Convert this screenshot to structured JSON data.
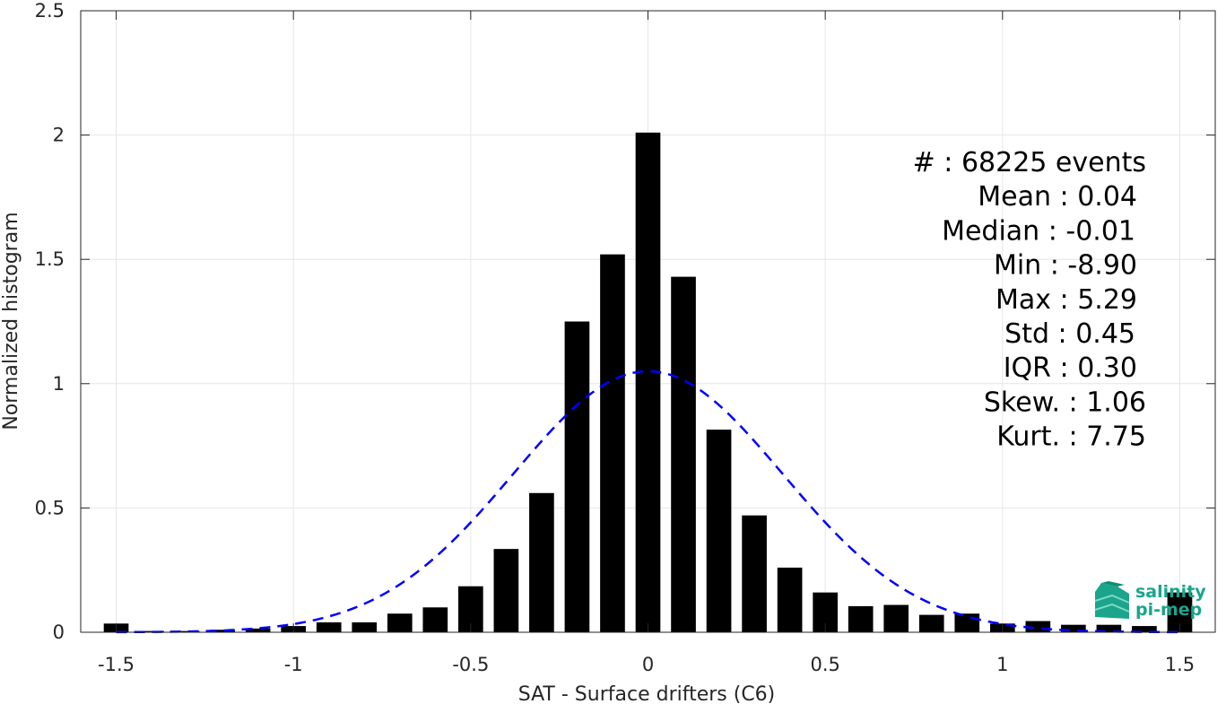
{
  "chart_data": {
    "type": "bar",
    "xlabel": "SAT - Surface drifters (C6)",
    "ylabel": "Normalized histogram",
    "xlim": [
      -1.6,
      1.6
    ],
    "ylim": [
      0,
      2.5
    ],
    "xticks": [
      -1.5,
      -1,
      -0.5,
      0,
      0.5,
      1,
      1.5
    ],
    "xtick_labels": [
      "-1.5",
      "-1",
      "-0.5",
      "0",
      "0.5",
      "1",
      "1.5"
    ],
    "yticks": [
      0,
      0.5,
      1,
      1.5,
      2,
      2.5
    ],
    "ytick_labels": [
      "0",
      "0.5",
      "1",
      "1.5",
      "2",
      "2.5"
    ],
    "grid": true,
    "bar_width": 0.07,
    "bar_color": "#000000",
    "x": [
      -1.5,
      -1.4,
      -1.3,
      -1.2,
      -1.1,
      -1.0,
      -0.9,
      -0.8,
      -0.7,
      -0.6,
      -0.5,
      -0.4,
      -0.3,
      -0.2,
      -0.1,
      0.0,
      0.1,
      0.2,
      0.3,
      0.4,
      0.5,
      0.6,
      0.7,
      0.8,
      0.9,
      1.0,
      1.1,
      1.2,
      1.3,
      1.4,
      1.5
    ],
    "values": [
      0.035,
      0.005,
      0.005,
      0.01,
      0.015,
      0.025,
      0.04,
      0.04,
      0.075,
      0.1,
      0.185,
      0.335,
      0.56,
      1.25,
      1.52,
      2.01,
      1.43,
      0.815,
      0.47,
      0.26,
      0.16,
      0.105,
      0.11,
      0.07,
      0.075,
      0.035,
      0.045,
      0.03,
      0.03,
      0.025,
      0.16
    ],
    "fit": {
      "type": "gaussian",
      "mean": 0.0,
      "std": 0.38,
      "peak": 1.05,
      "color": "#0000ff",
      "style": "dashed"
    },
    "annotations": [
      "#  : 68225 events",
      "Mean : 0.04",
      "Median : -0.01",
      "Min : -8.90",
      "Max : 5.29",
      "Std : 0.45",
      "IQR : 0.30",
      "Skew. : 1.06",
      "Kurt. : 7.75"
    ]
  },
  "logo": {
    "line1": "salinity",
    "line2": "pi-mep",
    "color": "#1aa58c"
  }
}
